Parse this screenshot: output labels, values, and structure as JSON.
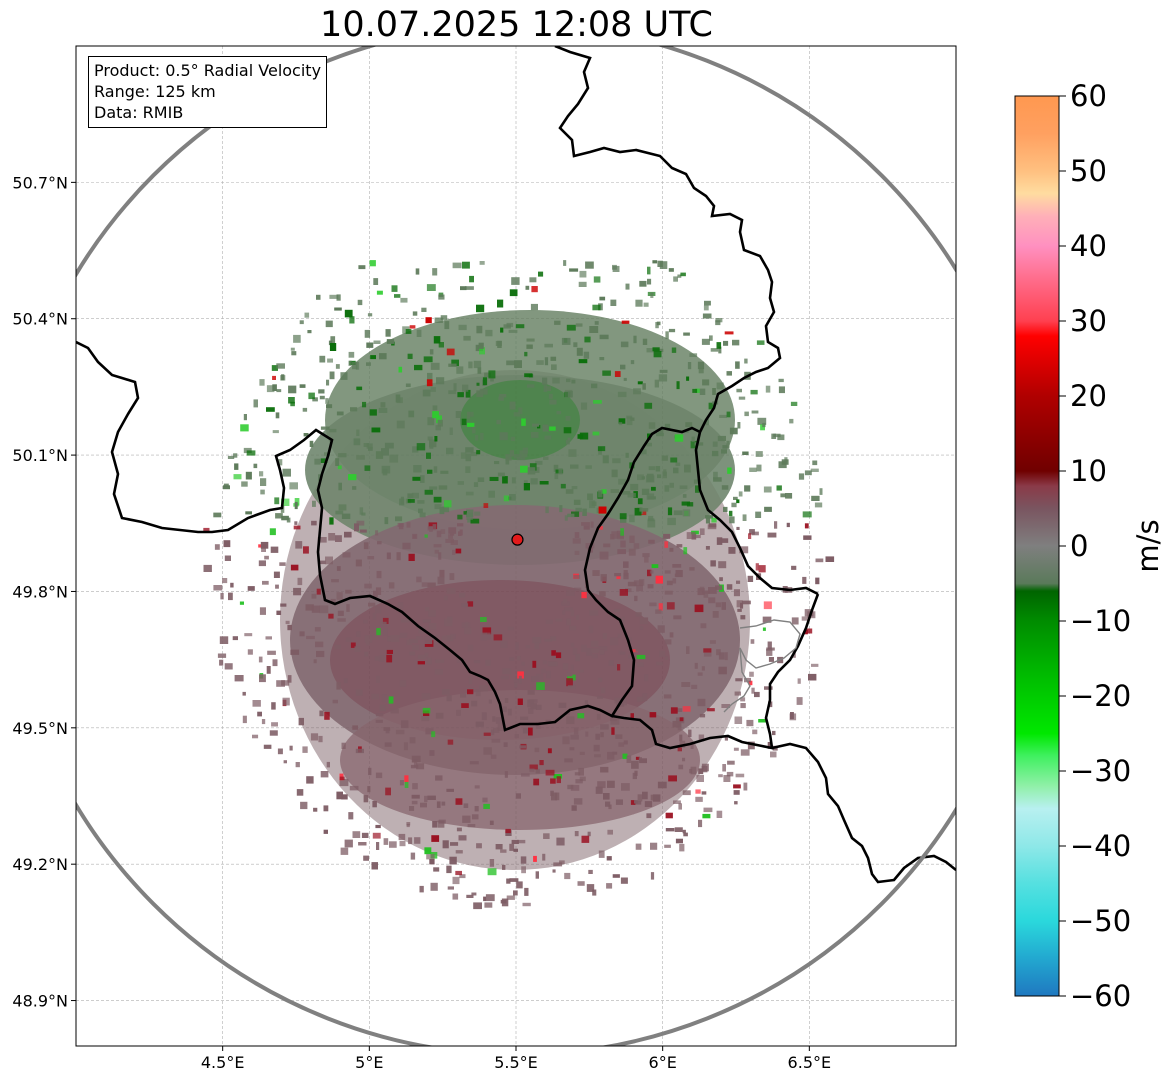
{
  "title": "10.07.2025 12:08 UTC",
  "info_box": {
    "product": "Product: 0.5° Radial Velocity",
    "range": "Range: 125 km",
    "data": "Data: RMIB"
  },
  "map": {
    "lon_range": [
      4.0,
      7.0
    ],
    "lat_range": [
      48.8,
      51.0
    ],
    "x_ticks": [
      {
        "value": 4.5,
        "label": "4.5°E"
      },
      {
        "value": 5.0,
        "label": "5°E"
      },
      {
        "value": 5.5,
        "label": "5.5°E"
      },
      {
        "value": 6.0,
        "label": "6°E"
      },
      {
        "value": 6.5,
        "label": "6.5°E"
      }
    ],
    "y_ticks": [
      {
        "value": 50.7,
        "label": "50.7°N"
      },
      {
        "value": 50.4,
        "label": "50.4°N"
      },
      {
        "value": 50.1,
        "label": "50.1°N"
      },
      {
        "value": 49.8,
        "label": "49.8°N"
      },
      {
        "value": 49.5,
        "label": "49.5°N"
      },
      {
        "value": 49.2,
        "label": "49.2°N"
      },
      {
        "value": 48.9,
        "label": "48.9°N"
      }
    ],
    "grid": true,
    "radar_site": {
      "lon": 5.505,
      "lat": 49.914,
      "color": "#e31a1c"
    },
    "range_ring_color": "#808080",
    "border_color": "#000000"
  },
  "colorbar": {
    "label": "m/s",
    "min": -60,
    "max": 60,
    "ticks": [
      {
        "value": 60,
        "label": "60"
      },
      {
        "value": 50,
        "label": "50"
      },
      {
        "value": 40,
        "label": "40"
      },
      {
        "value": 30,
        "label": "30"
      },
      {
        "value": 20,
        "label": "20"
      },
      {
        "value": 10,
        "label": "10"
      },
      {
        "value": 0,
        "label": "0"
      },
      {
        "value": -10,
        "label": "−10"
      },
      {
        "value": -20,
        "label": "−20"
      },
      {
        "value": -30,
        "label": "−30"
      },
      {
        "value": -40,
        "label": "−40"
      },
      {
        "value": -50,
        "label": "−50"
      },
      {
        "value": -60,
        "label": "−60"
      }
    ],
    "stops": [
      {
        "value": -60,
        "color": "#1f78c0"
      },
      {
        "value": -55,
        "color": "#22a8d0"
      },
      {
        "value": -50,
        "color": "#2ad8dc"
      },
      {
        "value": -45,
        "color": "#55e0e0"
      },
      {
        "value": -40,
        "color": "#8ee8e8"
      },
      {
        "value": -35,
        "color": "#b8f0f0"
      },
      {
        "value": -32,
        "color": "#90f0a8"
      },
      {
        "value": -28,
        "color": "#40f060"
      },
      {
        "value": -25,
        "color": "#00e800"
      },
      {
        "value": -18,
        "color": "#00c000"
      },
      {
        "value": -10,
        "color": "#008c00"
      },
      {
        "value": -6,
        "color": "#006400"
      },
      {
        "value": -5,
        "color": "#5a7a5a"
      },
      {
        "value": 0,
        "color": "#7f7f7f"
      },
      {
        "value": 5,
        "color": "#7a5560"
      },
      {
        "value": 8,
        "color": "#8a3a48"
      },
      {
        "value": 10,
        "color": "#700000"
      },
      {
        "value": 20,
        "color": "#b00000"
      },
      {
        "value": 28,
        "color": "#ff0000"
      },
      {
        "value": 30,
        "color": "#ff4050"
      },
      {
        "value": 36,
        "color": "#ff7090"
      },
      {
        "value": 40,
        "color": "#ff90c0"
      },
      {
        "value": 44,
        "color": "#ffb0b8"
      },
      {
        "value": 47,
        "color": "#ffdca0"
      },
      {
        "value": 50,
        "color": "#ffc080"
      },
      {
        "value": 55,
        "color": "#ffa060"
      },
      {
        "value": 60,
        "color": "#ff9850"
      }
    ]
  }
}
